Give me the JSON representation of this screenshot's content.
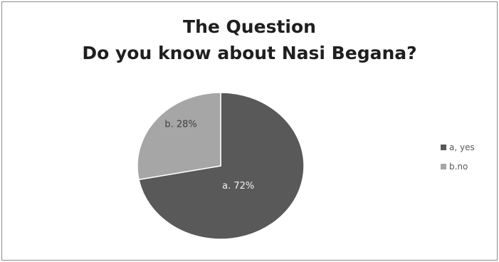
{
  "chart_data": {
    "type": "pie",
    "title_lines": [
      "The Question",
      "Do you know about Nasi Begana?"
    ],
    "slices": [
      {
        "label": "a. 72%",
        "legend": "a, yes",
        "value": 72,
        "color": "#595959"
      },
      {
        "label": "b. 28%",
        "legend": "b.no",
        "value": 28,
        "color": "#a6a6a6"
      }
    ],
    "legend_position": "right"
  }
}
